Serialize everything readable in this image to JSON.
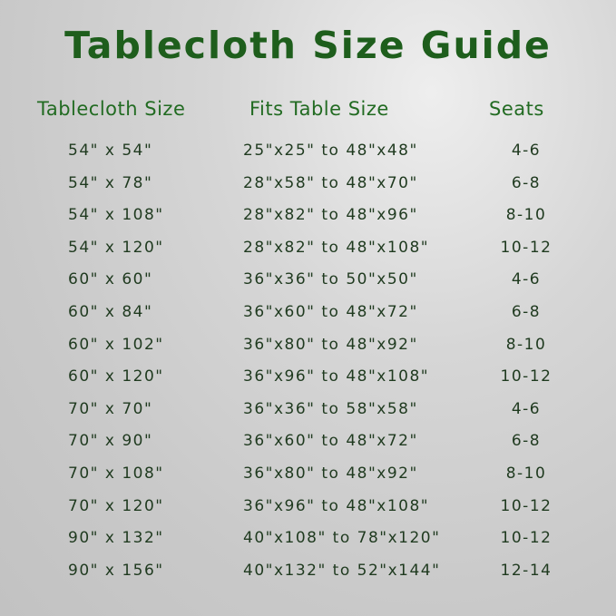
{
  "title": "Tablecloth Size Guide",
  "headers": {
    "tablecloth": "Tablecloth Size",
    "fits": "Fits Table Size",
    "seats": "Seats"
  },
  "colors": {
    "title": "#1e5e1c",
    "header": "#226b22",
    "text": "#1f3a1f"
  },
  "rows": [
    {
      "size": "54\" x 54\"",
      "fits": "25\"x25\" to 48\"x48\"",
      "seats": "4-6"
    },
    {
      "size": "54\" x 78\"",
      "fits": "28\"x58\" to 48\"x70\"",
      "seats": "6-8"
    },
    {
      "size": "54\" x 108\"",
      "fits": "28\"x82\" to 48\"x96\"",
      "seats": "8-10"
    },
    {
      "size": "54\" x 120\"",
      "fits": "28\"x82\" to 48\"x108\"",
      "seats": "10-12"
    },
    {
      "size": "60\" x 60\"",
      "fits": "36\"x36\" to 50\"x50\"",
      "seats": "4-6"
    },
    {
      "size": "60\" x 84\"",
      "fits": "36\"x60\" to 48\"x72\"",
      "seats": "6-8"
    },
    {
      "size": "60\" x 102\"",
      "fits": "36\"x80\" to 48\"x92\"",
      "seats": "8-10"
    },
    {
      "size": "60\" x 120\"",
      "fits": "36\"x96\" to 48\"x108\"",
      "seats": "10-12"
    },
    {
      "size": "70\" x 70\"",
      "fits": "36\"x36\" to 58\"x58\"",
      "seats": "4-6"
    },
    {
      "size": "70\" x 90\"",
      "fits": "36\"x60\" to 48\"x72\"",
      "seats": "6-8"
    },
    {
      "size": "70\" x 108\"",
      "fits": "36\"x80\" to 48\"x92\"",
      "seats": "8-10"
    },
    {
      "size": "70\" x 120\"",
      "fits": "36\"x96\" to 48\"x108\"",
      "seats": "10-12"
    },
    {
      "size": "90\" x 132\"",
      "fits": "40\"x108\" to 78\"x120\"",
      "seats": "10-12"
    },
    {
      "size": "90\" x 156\"",
      "fits": "40\"x132\" to 52\"x144\"",
      "seats": "12-14"
    }
  ]
}
